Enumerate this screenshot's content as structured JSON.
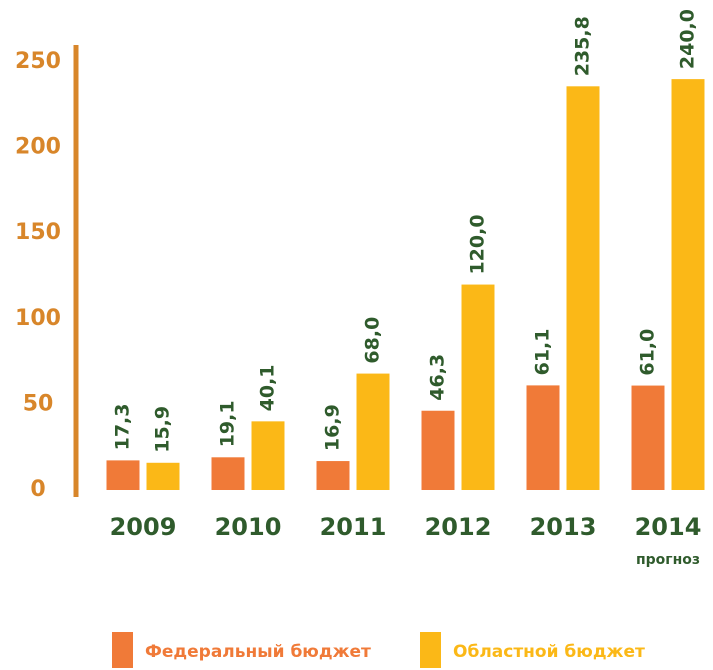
{
  "chart_data": {
    "type": "bar",
    "categories": [
      "2009",
      "2010",
      "2011",
      "2012",
      "2013",
      "2014"
    ],
    "annotation": "прогноз",
    "series": [
      {
        "name": "Федеральный бюджет",
        "color": "#f07a38",
        "values": [
          17.3,
          19.1,
          16.9,
          46.3,
          61.1,
          61.0
        ],
        "value_labels": [
          "17,3",
          "19,1",
          "16,9",
          "46,3",
          "61,1",
          "61,0"
        ]
      },
      {
        "name": "Областной бюджет",
        "color": "#fbb817",
        "values": [
          15.9,
          40.1,
          68.0,
          120.0,
          235.8,
          240.0
        ],
        "value_labels": [
          "15,9",
          "40,1",
          "68,0",
          "120,0",
          "235,8",
          "240,0"
        ]
      }
    ],
    "ylim": [
      0,
      250
    ],
    "yticks": [
      0,
      50,
      100,
      150,
      200,
      250
    ],
    "legend": "bottom"
  }
}
